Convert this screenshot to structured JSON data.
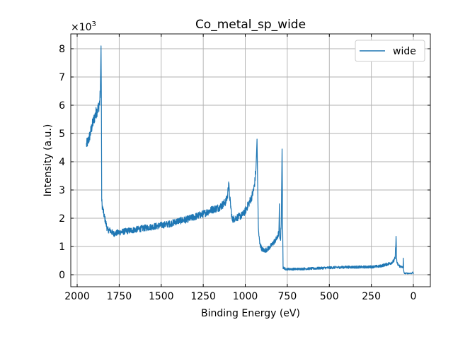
{
  "chart_data": {
    "type": "line",
    "title": "Co_metal_sp_wide",
    "xlabel": "Binding Energy (eV)",
    "ylabel": "Intensity (a.u.)",
    "y_multiplier_label": "×10",
    "y_multiplier_exp": "3",
    "xlim": [
      2038,
      -101
    ],
    "ylim": [
      -0.425,
      8.525
    ],
    "x_reversed": true,
    "grid": true,
    "legend_position": "top-right",
    "xticks": [
      2000,
      1750,
      1500,
      1250,
      1000,
      750,
      500,
      250,
      0
    ],
    "xtick_labels": [
      "2000",
      "1750",
      "1500",
      "1250",
      "1000",
      "750",
      "500",
      "250",
      "0"
    ],
    "yticks": [
      0,
      1,
      2,
      3,
      4,
      5,
      6,
      7,
      8
    ],
    "ytick_labels": [
      "0",
      "1",
      "2",
      "3",
      "4",
      "5",
      "6",
      "7",
      "8"
    ],
    "series": [
      {
        "name": "wide",
        "color": "#1f77b4",
        "noise_scale": 0.09,
        "x": [
          1945,
          1930,
          1910,
          1890,
          1875,
          1866,
          1862,
          1858,
          1856,
          1854,
          1850,
          1840,
          1820,
          1800,
          1785,
          1750,
          1700,
          1650,
          1600,
          1550,
          1500,
          1450,
          1400,
          1350,
          1300,
          1250,
          1200,
          1170,
          1150,
          1130,
          1115,
          1105,
          1099,
          1095,
          1088,
          1078,
          1060,
          1040,
          1020,
          1000,
          985,
          965,
          950,
          943,
          936,
          930,
          927,
          922,
          914,
          900,
          885,
          870,
          850,
          830,
          810,
          800,
          797,
          796,
          794,
          790,
          786,
          781,
          778,
          775,
          760,
          700,
          600,
          500,
          400,
          300,
          250,
          200,
          170,
          140,
          125,
          115,
          108,
          103,
          100,
          97,
          90,
          80,
          72,
          65,
          61,
          60,
          58,
          55,
          40,
          20,
          10,
          5,
          0
        ],
        "y": [
          4.6,
          4.8,
          5.3,
          5.7,
          5.9,
          6.1,
          6.5,
          8.1,
          6.3,
          2.6,
          2.4,
          2.1,
          1.6,
          1.55,
          1.45,
          1.5,
          1.55,
          1.6,
          1.65,
          1.7,
          1.75,
          1.8,
          1.9,
          1.95,
          2.05,
          2.15,
          2.3,
          2.35,
          2.4,
          2.5,
          2.6,
          2.8,
          3.3,
          2.9,
          2.5,
          1.95,
          2.0,
          2.05,
          2.1,
          2.25,
          2.45,
          2.7,
          3.0,
          3.3,
          3.8,
          4.8,
          3.5,
          1.6,
          1.1,
          0.9,
          0.85,
          0.9,
          1.0,
          1.15,
          1.3,
          1.5,
          2.4,
          1.6,
          1.2,
          1.3,
          1.8,
          4.45,
          2.0,
          0.25,
          0.2,
          0.2,
          0.22,
          0.25,
          0.27,
          0.27,
          0.28,
          0.3,
          0.35,
          0.4,
          0.45,
          0.5,
          0.6,
          1.35,
          0.6,
          0.4,
          0.35,
          0.3,
          0.28,
          0.25,
          0.3,
          0.55,
          0.2,
          0.05,
          0.05,
          0.05,
          0.05,
          0.1,
          0.02
        ]
      }
    ]
  }
}
